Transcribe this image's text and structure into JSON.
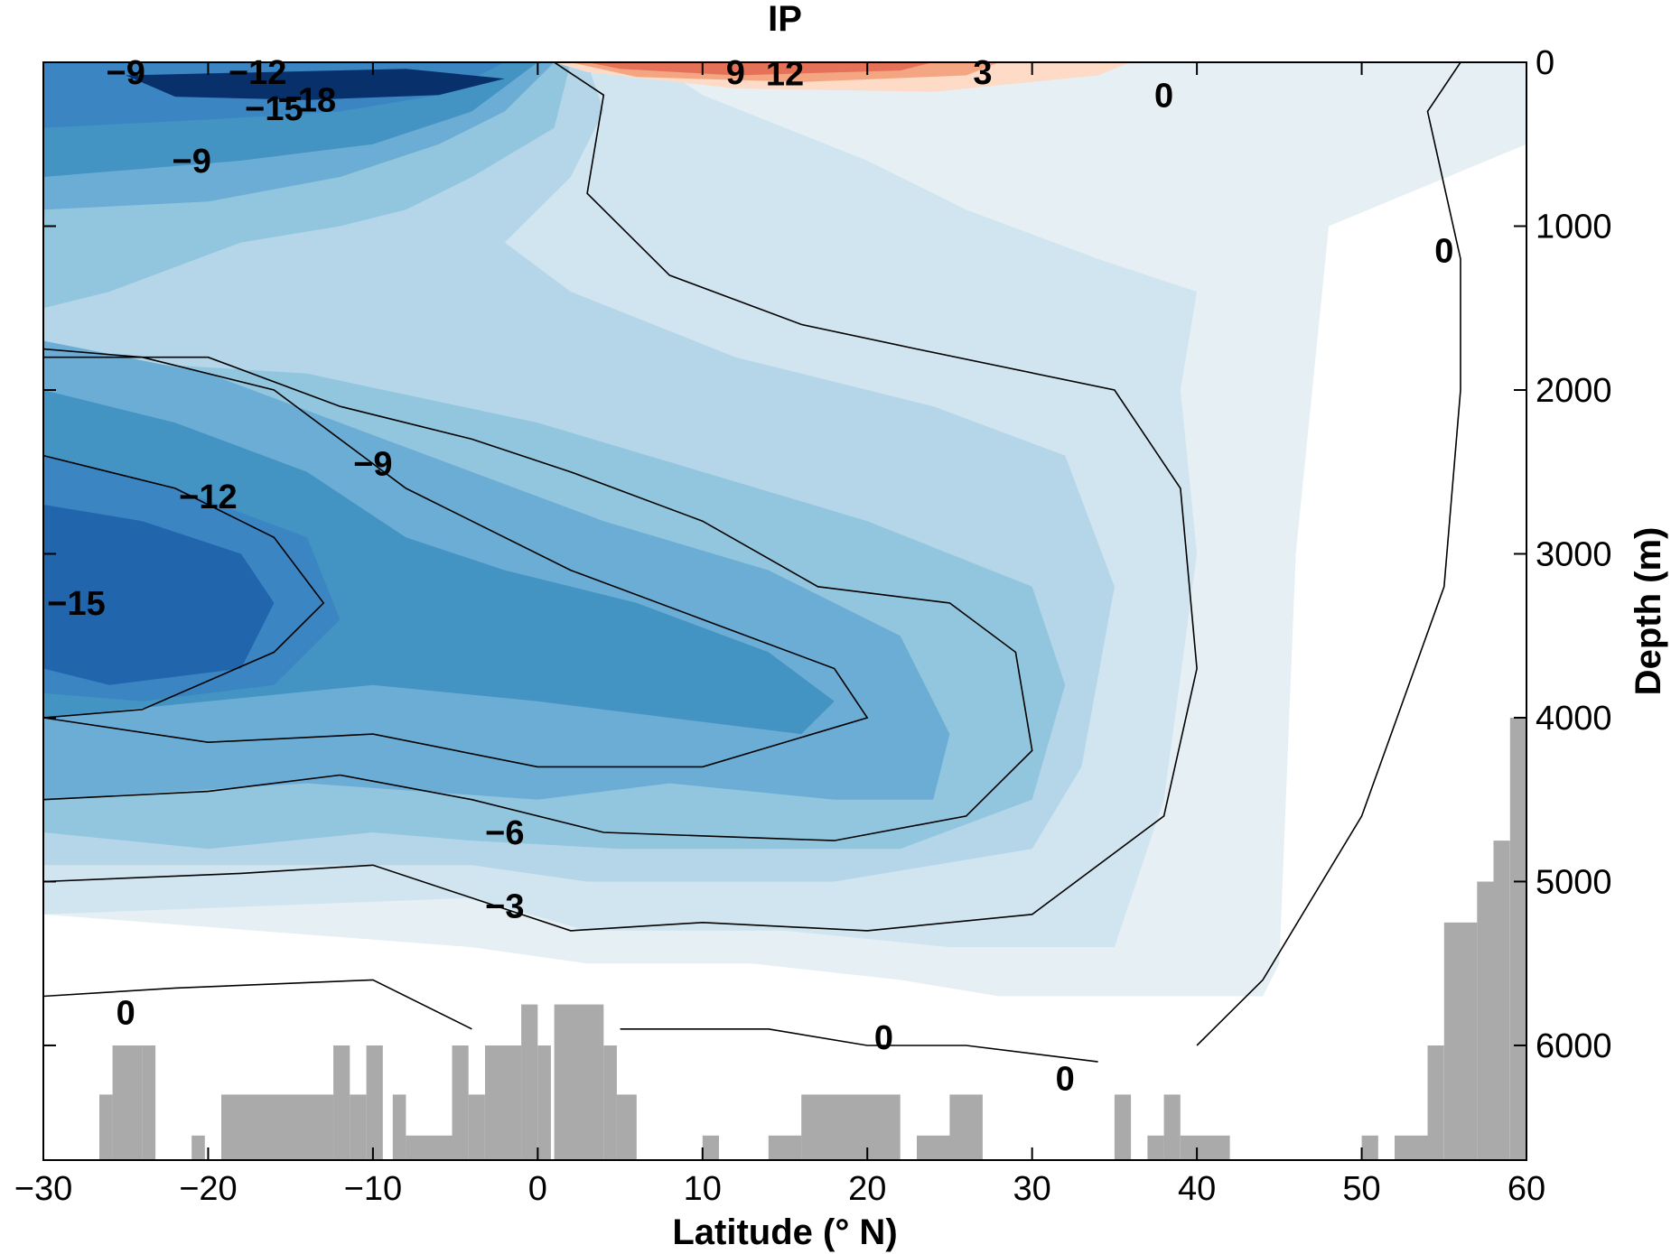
{
  "chart_data": {
    "type": "contour",
    "title": "IP",
    "xlabel": "Latitude (° N)",
    "ylabel": "Depth (m)",
    "xlim": [
      -30,
      60
    ],
    "ylim": [
      6700,
      0
    ],
    "xticks": [
      -30,
      -20,
      -10,
      0,
      10,
      20,
      30,
      40,
      50,
      60
    ],
    "xtick_labels": [
      "−30",
      "−20",
      "−10",
      "0",
      "10",
      "20",
      "30",
      "40",
      "50",
      "60"
    ],
    "yticks": [
      0,
      1000,
      2000,
      3000,
      4000,
      5000,
      6000
    ],
    "ytick_labels": [
      "0",
      "1000",
      "2000",
      "3000",
      "4000",
      "5000",
      "6000"
    ],
    "yaxis_position": "right",
    "colors": {
      "neg18": "#08306b",
      "neg15": "#2166ac",
      "neg12": "#3a85c2",
      "neg9": "#4393c3",
      "neg6": "#6badd4",
      "neg3": "#92c5de",
      "neg1": "#b4d6e8",
      "neg0": "#d1e5f0",
      "negtiny": "#e6eff4",
      "pos3": "#fddbc7",
      "pos6": "#f4a582",
      "pos9": "#e57158",
      "pos12": "#d6604d",
      "bathymetry": "#aaaaaa",
      "contour": "#000000"
    },
    "filled_regions": [
      {
        "level": "negtiny",
        "points": [
          [
            -30,
            0
          ],
          [
            60,
            0
          ],
          [
            60,
            500
          ],
          [
            48,
            1000
          ],
          [
            46,
            3000
          ],
          [
            45,
            5500
          ],
          [
            44,
            5700
          ],
          [
            28,
            5700
          ],
          [
            22,
            5600
          ],
          [
            13,
            5500
          ],
          [
            3,
            5500
          ],
          [
            -4,
            5400
          ],
          [
            -30,
            5200
          ]
        ]
      },
      {
        "level": "neg0",
        "points": [
          [
            -30,
            0
          ],
          [
            7,
            0
          ],
          [
            10,
            200
          ],
          [
            20,
            600
          ],
          [
            26,
            900
          ],
          [
            34,
            1200
          ],
          [
            40,
            1400
          ],
          [
            39,
            2000
          ],
          [
            40,
            3000
          ],
          [
            38,
            4500
          ],
          [
            35,
            5400
          ],
          [
            25,
            5400
          ],
          [
            15,
            5300
          ],
          [
            3,
            5300
          ],
          [
            -4,
            5100
          ],
          [
            -30,
            5200
          ]
        ]
      },
      {
        "level": "neg1",
        "points": [
          [
            -30,
            0
          ],
          [
            3,
            0
          ],
          [
            4,
            300
          ],
          [
            2,
            700
          ],
          [
            -2,
            1100
          ],
          [
            2,
            1400
          ],
          [
            12,
            1800
          ],
          [
            24,
            2100
          ],
          [
            32,
            2400
          ],
          [
            35,
            3200
          ],
          [
            33,
            4300
          ],
          [
            30,
            4800
          ],
          [
            18,
            5000
          ],
          [
            3,
            5000
          ],
          [
            -4,
            4900
          ],
          [
            -30,
            4900
          ]
        ]
      },
      {
        "level": "neg3",
        "points": [
          [
            -30,
            0
          ],
          [
            2,
            0
          ],
          [
            1,
            400
          ],
          [
            -4,
            700
          ],
          [
            -8,
            900
          ],
          [
            -12,
            1000
          ],
          [
            -18,
            1100
          ],
          [
            -26,
            1400
          ],
          [
            -30,
            1500
          ],
          [
            -30,
            4700
          ],
          [
            -20,
            4800
          ],
          [
            -10,
            4700
          ],
          [
            -4,
            4750
          ],
          [
            5,
            4800
          ],
          [
            22,
            4800
          ],
          [
            30,
            4500
          ],
          [
            32,
            3800
          ],
          [
            30,
            3200
          ],
          [
            20,
            2800
          ],
          [
            10,
            2500
          ],
          [
            0,
            2200
          ],
          [
            -14,
            1900
          ],
          [
            -30,
            1800
          ]
        ]
      },
      {
        "level": "neg6",
        "points": [
          [
            -30,
            0
          ],
          [
            1,
            0
          ],
          [
            -2,
            300
          ],
          [
            -6,
            500
          ],
          [
            -12,
            700
          ],
          [
            -20,
            850
          ],
          [
            -30,
            900
          ],
          [
            -30,
            1700
          ],
          [
            -20,
            1900
          ],
          [
            -12,
            2200
          ],
          [
            -4,
            2500
          ],
          [
            4,
            2800
          ],
          [
            14,
            3100
          ],
          [
            22,
            3500
          ],
          [
            25,
            4100
          ],
          [
            24,
            4500
          ],
          [
            18,
            4500
          ],
          [
            8,
            4400
          ],
          [
            0,
            4500
          ],
          [
            -14,
            4400
          ],
          [
            -30,
            4500
          ]
        ]
      },
      {
        "level": "neg9",
        "points": [
          [
            -30,
            0
          ],
          [
            0,
            0
          ],
          [
            -4,
            300
          ],
          [
            -10,
            500
          ],
          [
            -18,
            600
          ],
          [
            -30,
            700
          ],
          [
            -30,
            2000
          ],
          [
            -22,
            2200
          ],
          [
            -14,
            2500
          ],
          [
            -8,
            2900
          ],
          [
            -2,
            3100
          ],
          [
            6,
            3300
          ],
          [
            14,
            3600
          ],
          [
            18,
            3900
          ],
          [
            16,
            4100
          ],
          [
            8,
            4000
          ],
          [
            0,
            3900
          ],
          [
            -10,
            3800
          ],
          [
            -20,
            3900
          ],
          [
            -30,
            4000
          ]
        ]
      },
      {
        "level": "neg12",
        "points": [
          [
            -30,
            0
          ],
          [
            -2,
            0
          ],
          [
            -6,
            200
          ],
          [
            -12,
            300
          ],
          [
            -20,
            350
          ],
          [
            -30,
            400
          ],
          [
            -30,
            2400
          ],
          [
            -22,
            2600
          ],
          [
            -14,
            2900
          ],
          [
            -12,
            3400
          ],
          [
            -16,
            3800
          ],
          [
            -24,
            3900
          ],
          [
            -30,
            3850
          ]
        ]
      },
      {
        "level": "neg15",
        "points": [
          [
            -30,
            2700
          ],
          [
            -24,
            2800
          ],
          [
            -18,
            3000
          ],
          [
            -16,
            3300
          ],
          [
            -18,
            3700
          ],
          [
            -26,
            3800
          ],
          [
            -30,
            3700
          ]
        ]
      },
      {
        "level": "neg18",
        "points": [
          [
            -25,
            80
          ],
          [
            -8,
            40
          ],
          [
            -2,
            100
          ],
          [
            -6,
            200
          ],
          [
            -14,
            230
          ],
          [
            -22,
            210
          ]
        ]
      },
      {
        "level": "pos3",
        "points": [
          [
            1,
            0
          ],
          [
            36,
            0
          ],
          [
            34,
            80
          ],
          [
            24,
            180
          ],
          [
            12,
            160
          ],
          [
            3,
            60
          ]
        ]
      },
      {
        "level": "pos6",
        "points": [
          [
            2,
            0
          ],
          [
            28,
            0
          ],
          [
            26,
            80
          ],
          [
            16,
            120
          ],
          [
            6,
            90
          ]
        ]
      },
      {
        "level": "pos9",
        "points": [
          [
            3,
            0
          ],
          [
            24,
            0
          ],
          [
            22,
            50
          ],
          [
            12,
            80
          ],
          [
            5,
            40
          ]
        ]
      }
    ],
    "contours": [
      {
        "level": -3,
        "points": [
          [
            -30,
            5000
          ],
          [
            -18,
            4950
          ],
          [
            -10,
            4900
          ],
          [
            -4,
            5100
          ],
          [
            2,
            5300
          ],
          [
            10,
            5250
          ],
          [
            20,
            5300
          ],
          [
            30,
            5200
          ],
          [
            38,
            4600
          ],
          [
            40,
            3700
          ],
          [
            39,
            2600
          ],
          [
            35,
            2000
          ],
          [
            23,
            1750
          ],
          [
            16,
            1600
          ],
          [
            8,
            1300
          ],
          [
            3,
            800
          ],
          [
            4,
            200
          ],
          [
            1,
            0
          ]
        ]
      },
      {
        "level": -6,
        "points": [
          [
            -30,
            4500
          ],
          [
            -20,
            4450
          ],
          [
            -12,
            4350
          ],
          [
            -4,
            4500
          ],
          [
            4,
            4700
          ],
          [
            18,
            4750
          ],
          [
            26,
            4600
          ],
          [
            30,
            4200
          ],
          [
            29,
            3600
          ],
          [
            25,
            3300
          ],
          [
            17,
            3200
          ],
          [
            10,
            2800
          ],
          [
            2,
            2500
          ],
          [
            -4,
            2300
          ],
          [
            -12,
            2100
          ],
          [
            -20,
            1800
          ],
          [
            -30,
            1800
          ]
        ]
      },
      {
        "level": -9,
        "points": [
          [
            -30,
            4000
          ],
          [
            -20,
            4150
          ],
          [
            -10,
            4100
          ],
          [
            0,
            4300
          ],
          [
            10,
            4300
          ],
          [
            20,
            4000
          ],
          [
            18,
            3700
          ],
          [
            10,
            3400
          ],
          [
            2,
            3100
          ],
          [
            -8,
            2600
          ],
          [
            -16,
            2000
          ],
          [
            -24,
            1800
          ],
          [
            -30,
            1750
          ]
        ]
      },
      {
        "level": -12,
        "points": [
          [
            -30,
            2400
          ],
          [
            -22,
            2600
          ],
          [
            -16,
            2900
          ],
          [
            -13,
            3300
          ],
          [
            -16,
            3600
          ],
          [
            -24,
            3950
          ],
          [
            -30,
            4000
          ]
        ]
      },
      {
        "level": 0,
        "points": [
          [
            56,
            0
          ],
          [
            54,
            300
          ],
          [
            56,
            1200
          ],
          [
            56,
            2000
          ],
          [
            55,
            3200
          ],
          [
            50,
            4600
          ],
          [
            44,
            5600
          ],
          [
            40,
            6000
          ]
        ]
      },
      {
        "level": 0,
        "points": [
          [
            -30,
            5700
          ],
          [
            -22,
            5650
          ],
          [
            -10,
            5600
          ],
          [
            -4,
            5900
          ]
        ]
      },
      {
        "level": 0,
        "points": [
          [
            5,
            5900
          ],
          [
            14,
            5900
          ],
          [
            20,
            6000
          ],
          [
            26,
            6000
          ],
          [
            34,
            6100
          ]
        ]
      }
    ],
    "contour_labels": [
      {
        "text": "0",
        "x": 38,
        "y": 200
      },
      {
        "text": "0",
        "x": 55,
        "y": 1150
      },
      {
        "text": "−9",
        "x": -21,
        "y": 600
      },
      {
        "text": "−12",
        "x": -20,
        "y": 2650
      },
      {
        "text": "−15",
        "x": -28,
        "y": 3300
      },
      {
        "text": "−9",
        "x": -10,
        "y": 2450
      },
      {
        "text": "−6",
        "x": -2,
        "y": 4700
      },
      {
        "text": "−3",
        "x": -2,
        "y": 5150
      },
      {
        "text": "0",
        "x": -25,
        "y": 5800
      },
      {
        "text": "0",
        "x": 21,
        "y": 5950
      },
      {
        "text": "0",
        "x": 32,
        "y": 6200
      },
      {
        "text": "−9",
        "x": -25,
        "y": 60
      },
      {
        "text": "−12",
        "x": -17,
        "y": 60
      },
      {
        "text": "−18",
        "x": -14,
        "y": 230
      },
      {
        "text": "−15",
        "x": -16,
        "y": 280
      },
      {
        "text": "9",
        "x": 12,
        "y": 60
      },
      {
        "text": "12",
        "x": 15,
        "y": 70
      },
      {
        "text": "3",
        "x": 27,
        "y": 60
      }
    ],
    "bathymetry": [
      [
        -26.6,
        -25.8,
        6300
      ],
      [
        -25.8,
        -24,
        6000
      ],
      [
        -24,
        -23.2,
        6000
      ],
      [
        -21,
        -20.2,
        6550
      ],
      [
        -19.2,
        -12.4,
        6300
      ],
      [
        -12.4,
        -11.4,
        6000
      ],
      [
        -11.4,
        -10.4,
        6300
      ],
      [
        -10.4,
        -9.4,
        6000
      ],
      [
        -8.8,
        -8,
        6300
      ],
      [
        -8,
        -5.2,
        6550
      ],
      [
        -5.2,
        -4.2,
        6000
      ],
      [
        -4.2,
        -3.2,
        6300
      ],
      [
        -3.2,
        -1,
        6000
      ],
      [
        -1,
        0,
        5750
      ],
      [
        0,
        0.8,
        6000
      ],
      [
        1,
        4,
        5750
      ],
      [
        4,
        4.8,
        6000
      ],
      [
        4.8,
        6,
        6300
      ],
      [
        10,
        11,
        6550
      ],
      [
        14,
        16,
        6550
      ],
      [
        16,
        22,
        6300
      ],
      [
        23,
        25,
        6550
      ],
      [
        25,
        27,
        6300
      ],
      [
        35,
        36,
        6300
      ],
      [
        37,
        38,
        6550
      ],
      [
        38,
        39,
        6300
      ],
      [
        39,
        42,
        6550
      ],
      [
        50,
        51,
        6550
      ],
      [
        52,
        54,
        6550
      ],
      [
        54,
        55,
        6000
      ],
      [
        55,
        57,
        5250
      ],
      [
        57,
        58,
        5000
      ],
      [
        58,
        59,
        4750
      ],
      [
        59,
        60,
        4000
      ]
    ]
  }
}
